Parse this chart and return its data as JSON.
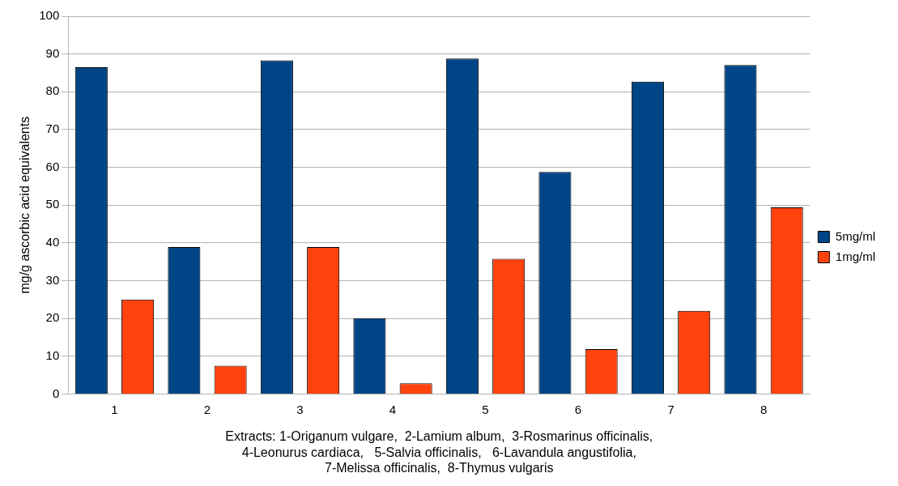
{
  "chart_data": {
    "type": "bar",
    "categories": [
      "1",
      "2",
      "3",
      "4",
      "5",
      "6",
      "7",
      "8"
    ],
    "series": [
      {
        "name": "5mg/ml",
        "color": "#004586",
        "values": [
          86.5,
          38.9,
          88.3,
          20.1,
          88.8,
          58.8,
          82.7,
          87.1
        ]
      },
      {
        "name": "1mg/ml",
        "color": "#ff420e",
        "values": [
          25,
          7.5,
          38.9,
          2.8,
          35.8,
          11.9,
          22,
          49.4
        ]
      }
    ],
    "ylabel": "mg/g ascorbic acid equivalents",
    "xlabel": "Extracts: 1-Origanum vulgare,  2-Lamium album,  3-Rosmarinus officinalis,\n4-Leonurus cardiaca,   5-Salvia officinalis,   6-Lavandula angustifolia,\n7-Melissa officinalis,  8-Thymus vulgaris",
    "ylim": [
      0,
      100
    ],
    "yticks": [
      0,
      10,
      20,
      30,
      40,
      50,
      60,
      70,
      80,
      90,
      100
    ],
    "grid": "y",
    "legend": "right"
  }
}
